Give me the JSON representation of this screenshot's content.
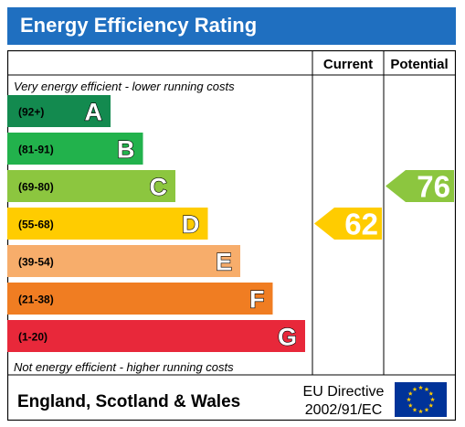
{
  "title": "Energy Efficiency Rating",
  "chart_data": {
    "type": "bar",
    "columns": [
      "Current",
      "Potential"
    ],
    "top_note": "Very energy efficient - lower running costs",
    "bottom_note": "Not energy efficient - higher running costs",
    "bands": [
      {
        "letter": "A",
        "range": "(92+)",
        "color": "#138a4f"
      },
      {
        "letter": "B",
        "range": "(81-91)",
        "color": "#22b24c"
      },
      {
        "letter": "C",
        "range": "(69-80)",
        "color": "#8cc63f"
      },
      {
        "letter": "D",
        "range": "(55-68)",
        "color": "#ffcc00"
      },
      {
        "letter": "E",
        "range": "(39-54)",
        "color": "#f7ad6b"
      },
      {
        "letter": "F",
        "range": "(21-38)",
        "color": "#f07d22"
      },
      {
        "letter": "G",
        "range": "(1-20)",
        "color": "#e8283a"
      }
    ],
    "current": {
      "value": 62,
      "band": "D",
      "color": "#ffcc00"
    },
    "potential": {
      "value": 76,
      "band": "C",
      "color": "#8cc63f"
    }
  },
  "footer": {
    "country": "England, Scotland & Wales",
    "directive_line1": "EU Directive",
    "directive_line2": "2002/91/EC"
  },
  "eu_flag": {
    "icon": "eu-flag-icon",
    "background": "#003399",
    "stars": "#ffcc00"
  }
}
